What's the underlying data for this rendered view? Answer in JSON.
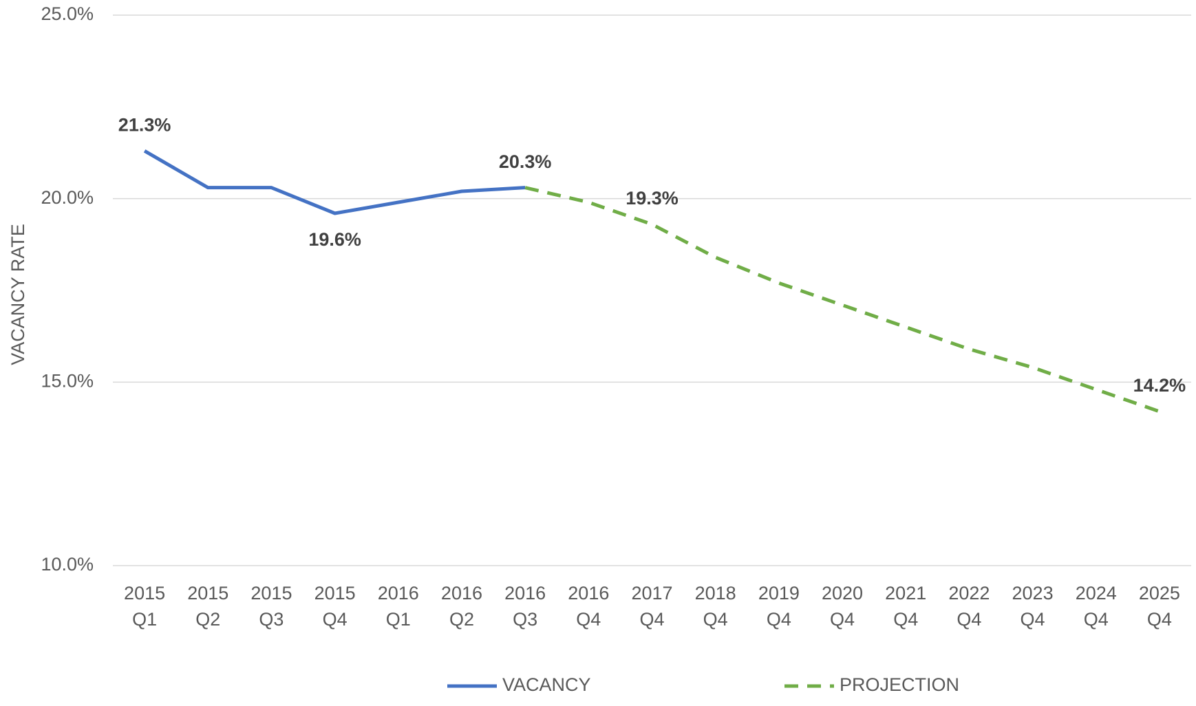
{
  "chart_data": {
    "type": "line",
    "y_label": "VACANCY RATE",
    "categories": [
      [
        "2015",
        "Q1"
      ],
      [
        "2015",
        "Q2"
      ],
      [
        "2015",
        "Q3"
      ],
      [
        "2015",
        "Q4"
      ],
      [
        "2016",
        "Q1"
      ],
      [
        "2016",
        "Q2"
      ],
      [
        "2016",
        "Q3"
      ],
      [
        "2016",
        "Q4"
      ],
      [
        "2017",
        "Q4"
      ],
      [
        "2018",
        "Q4"
      ],
      [
        "2019",
        "Q4"
      ],
      [
        "2020",
        "Q4"
      ],
      [
        "2021",
        "Q4"
      ],
      [
        "2022",
        "Q4"
      ],
      [
        "2023",
        "Q4"
      ],
      [
        "2024",
        "Q4"
      ],
      [
        "2025",
        "Q4"
      ]
    ],
    "series": [
      {
        "name": "VACANCY",
        "color": "#4472c4",
        "dashed": false,
        "values": [
          21.3,
          20.3,
          20.3,
          19.6,
          19.9,
          20.2,
          20.3,
          null,
          null,
          null,
          null,
          null,
          null,
          null,
          null,
          null,
          null
        ],
        "value_labels": [
          "21.3%",
          null,
          null,
          "19.6%",
          null,
          null,
          "20.3%",
          null,
          null,
          null,
          null,
          null,
          null,
          null,
          null,
          null,
          null
        ]
      },
      {
        "name": "PROJECTION",
        "color": "#70ad47",
        "dashed": true,
        "values": [
          null,
          null,
          null,
          null,
          null,
          null,
          20.3,
          19.9,
          19.3,
          18.4,
          17.7,
          17.1,
          16.5,
          15.9,
          15.4,
          14.8,
          14.2
        ],
        "value_labels": [
          null,
          null,
          null,
          null,
          null,
          null,
          null,
          null,
          "19.3%",
          null,
          null,
          null,
          null,
          null,
          null,
          null,
          "14.2%"
        ]
      }
    ],
    "ylim": [
      10,
      25
    ],
    "yticks": [
      {
        "value": 10,
        "label": "10.0%"
      },
      {
        "value": 15,
        "label": "15.0%"
      },
      {
        "value": 20,
        "label": "20.0%"
      },
      {
        "value": 25,
        "label": "25.0%"
      }
    ],
    "grid": true,
    "legend": "bottom"
  }
}
